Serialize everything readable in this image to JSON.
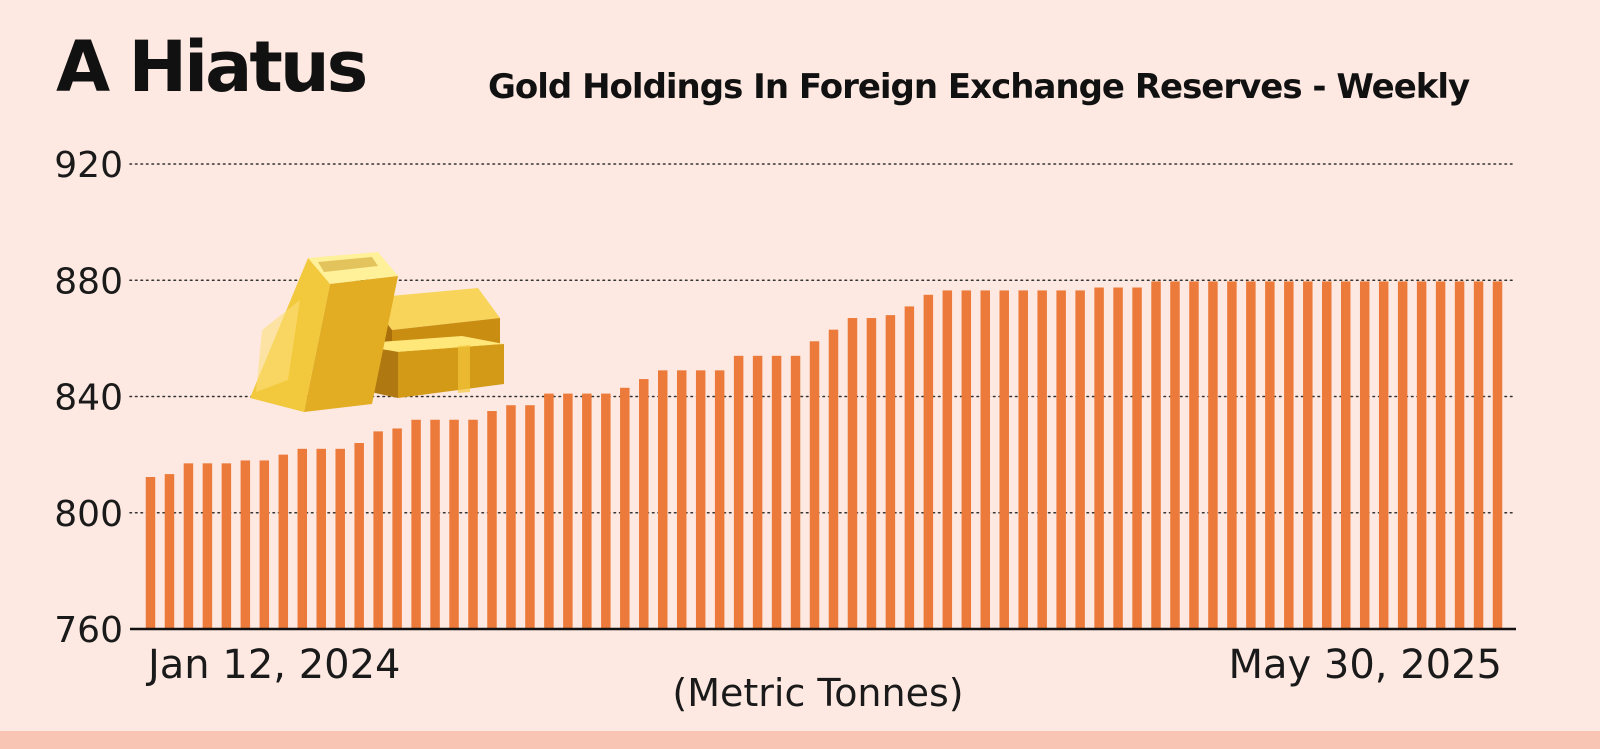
{
  "headline": "A Hiatus",
  "chart_data": {
    "type": "bar",
    "title": "Gold Holdings In Foreign Exchange Reserves - Weekly",
    "unit_label": "(Metric Tonnes)",
    "start_label": "Jan 12, 2024",
    "end_label": "May 30, 2025",
    "frequency": "weekly",
    "ylim": [
      760,
      920
    ],
    "yticks": [
      760,
      800,
      840,
      880,
      920
    ],
    "grid": true,
    "grid_style": "dotted",
    "bar_color": "#ec7a3a",
    "values": [
      812.3,
      813.3,
      817.0,
      817.0,
      817.0,
      818.0,
      818.0,
      820.0,
      822.0,
      822.0,
      822.0,
      824.0,
      828.0,
      829.0,
      832.0,
      832.0,
      832.0,
      832.0,
      835.0,
      837.0,
      837.0,
      841.0,
      841.0,
      841.0,
      841.0,
      843.0,
      846.0,
      849.0,
      849.0,
      849.0,
      849.0,
      854.0,
      854.0,
      854.0,
      854.0,
      859.0,
      863.0,
      867.0,
      867.0,
      868.0,
      871.0,
      875.0,
      876.5,
      876.5,
      876.5,
      876.5,
      876.5,
      876.5,
      876.5,
      876.5,
      877.5,
      877.5,
      877.5,
      879.6,
      879.6,
      879.6,
      879.6,
      879.6,
      879.6,
      879.6,
      879.6,
      879.6,
      879.6,
      879.6,
      879.6,
      879.6,
      879.6,
      879.6,
      879.6,
      879.6,
      879.6,
      879.6
    ]
  }
}
